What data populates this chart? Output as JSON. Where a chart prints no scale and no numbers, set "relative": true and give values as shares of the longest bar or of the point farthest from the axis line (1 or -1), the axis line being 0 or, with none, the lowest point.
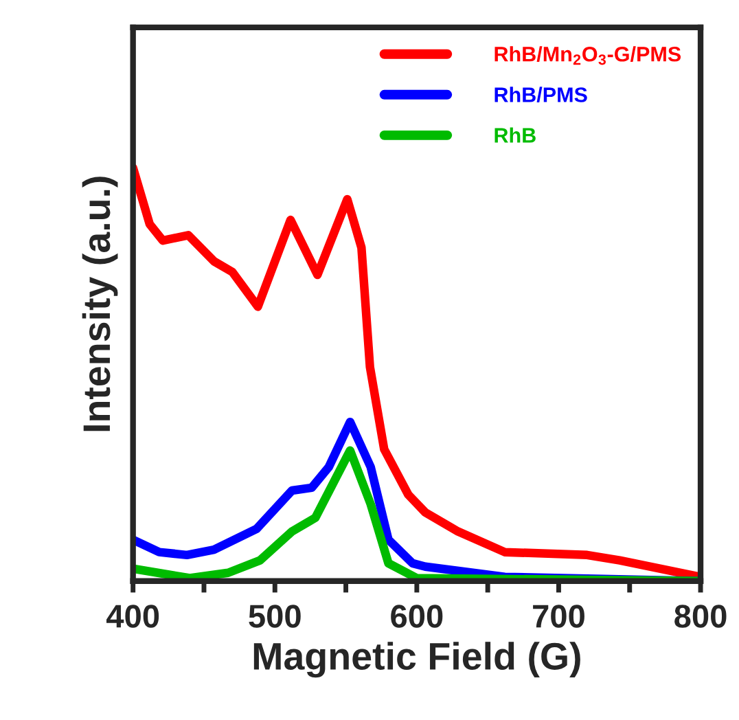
{
  "chart_data": {
    "type": "line",
    "xlabel": "Magnetic Field (G)",
    "ylabel": "Intensity (a.u.)",
    "relative": true,
    "xlim": [
      400,
      800
    ],
    "xticks": [
      400,
      {
        "value": 450,
        "label": null
      },
      500,
      {
        "value": 550,
        "label": null
      },
      600,
      {
        "value": 650,
        "label": null
      },
      700,
      {
        "value": 750,
        "label": null
      },
      800
    ],
    "legend": "top right",
    "grid": false,
    "marker": "none",
    "line_style": "solid",
    "series": [
      {
        "name": "RhB/Mn$_{2}$O$_{3}$-G/PMS",
        "color": "#ff0000",
        "x": [
          400,
          411.7,
          421,
          439,
          457,
          470,
          488,
          511,
          530,
          551,
          561,
          567,
          577,
          594,
          606,
          629,
          662,
          720,
          743,
          800
        ],
        "values": [
          1.0,
          0.864,
          0.824,
          0.837,
          0.774,
          0.748,
          0.664,
          0.874,
          0.741,
          0.924,
          0.807,
          0.518,
          0.319,
          0.209,
          0.166,
          0.12,
          0.07,
          0.063,
          0.05,
          0.01
        ]
      },
      {
        "name": "RhB/PMS",
        "color": "#0000ff",
        "x": [
          400,
          418.5,
          438,
          457,
          487,
          512,
          526,
          538,
          553,
          567.5,
          580,
          597,
          606,
          662,
          800
        ],
        "values": [
          0.1,
          0.07,
          0.063,
          0.076,
          0.126,
          0.219,
          0.226,
          0.276,
          0.385,
          0.276,
          0.1,
          0.043,
          0.035,
          0.01,
          0.0
        ]
      },
      {
        "name": "RhB",
        "color": "#00bb00",
        "x": [
          400,
          440,
          467,
          489.5,
          512,
          528.5,
          553,
          567.5,
          580,
          600,
          800
        ],
        "values": [
          0.03,
          0.007,
          0.02,
          0.05,
          0.12,
          0.153,
          0.316,
          0.186,
          0.043,
          0.007,
          0.0
        ]
      }
    ]
  }
}
